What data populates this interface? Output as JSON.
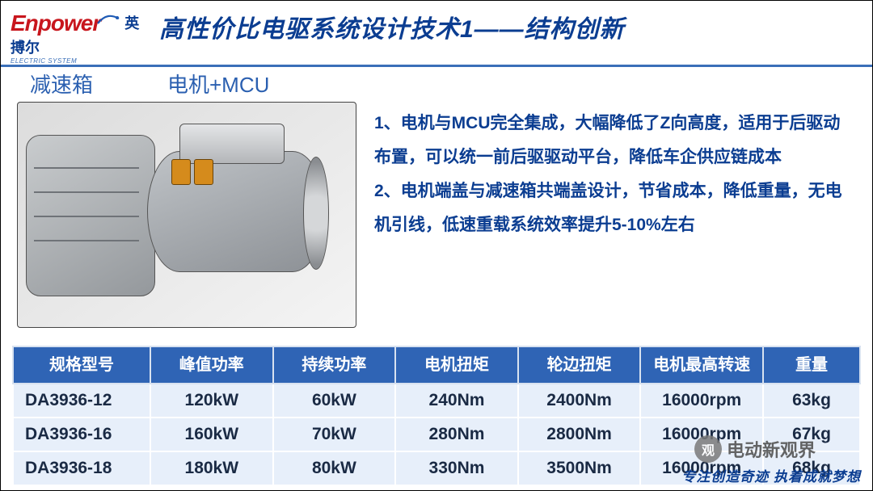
{
  "logo": {
    "en": "Enpower",
    "cn": "英搏尔",
    "sub": "ELECTRIC SYSTEM"
  },
  "title": "高性价比电驱系统设计技术1——结构创新",
  "labels": {
    "gearbox": "减速箱",
    "motor_mcu": "电机+MCU"
  },
  "bullets": [
    "1、电机与MCU完全集成，大幅降低了Z向高度，适用于后驱动布置，可以统一前后驱驱动平台，降低车企供应链成本",
    "2、电机端盖与减速箱共端盖设计，节省成本，降低重量，无电机引线，低速重载系统效率提升5-10%左右"
  ],
  "table": {
    "header_bg": "#2f64b5",
    "header_fg": "#ffffff",
    "row_bg": "#e7effa",
    "columns": [
      "规格型号",
      "峰值功率",
      "持续功率",
      "电机扭矩",
      "轮边扭矩",
      "电机最高转速",
      "重量"
    ],
    "rows": [
      [
        "DA3936-12",
        "120kW",
        "60kW",
        "240Nm",
        "2400Nm",
        "16000rpm",
        "63kg"
      ],
      [
        "DA3936-16",
        "160kW",
        "70kW",
        "280Nm",
        "2800Nm",
        "16000rpm",
        "67kg"
      ],
      [
        "DA3936-18",
        "180kW",
        "80kW",
        "330Nm",
        "3500Nm",
        "16000rpm",
        "68kg"
      ]
    ]
  },
  "footer": "专注创造奇迹  执着成就梦想",
  "watermark": {
    "badge": "观",
    "text": "电动新观界"
  },
  "colors": {
    "title": "#0b3d91",
    "accent": "#3a6fb8",
    "logo_red": "#c8161d"
  }
}
